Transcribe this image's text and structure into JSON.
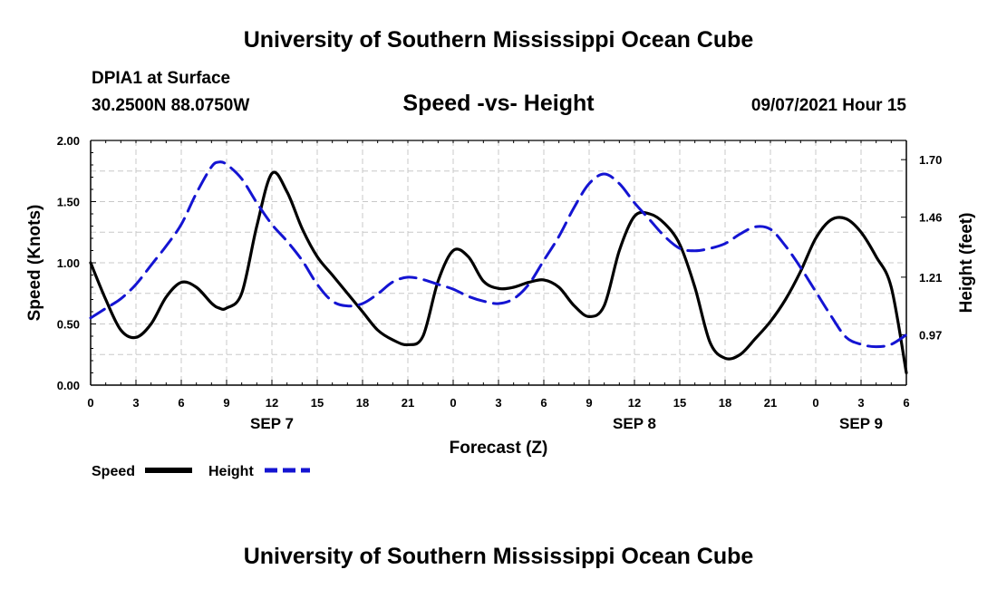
{
  "header": {
    "title_top": "University of Southern Mississippi Ocean Cube",
    "title_bottom": "University of Southern Mississippi Ocean Cube",
    "station": "DPIA1 at Surface",
    "coords": "30.2500N  88.0750W",
    "date_hour": "09/07/2021 Hour 15"
  },
  "colors": {
    "speed": "#000000",
    "height": "#1414d2",
    "grid": "#c8c8c8"
  },
  "chart_data": {
    "type": "line",
    "title": "Speed -vs- Height",
    "xlabel": "Forecast (Z)",
    "ylabel_left": "Speed (Knots)",
    "ylabel_right": "Height (feet)",
    "x_range_hours": [
      0,
      54
    ],
    "x_ticks": [
      {
        "hour": 0,
        "label": "0"
      },
      {
        "hour": 3,
        "label": "3"
      },
      {
        "hour": 6,
        "label": "6"
      },
      {
        "hour": 9,
        "label": "9"
      },
      {
        "hour": 12,
        "label": "12"
      },
      {
        "hour": 15,
        "label": "15"
      },
      {
        "hour": 18,
        "label": "18"
      },
      {
        "hour": 21,
        "label": "21"
      },
      {
        "hour": 24,
        "label": "0"
      },
      {
        "hour": 27,
        "label": "3"
      },
      {
        "hour": 30,
        "label": "6"
      },
      {
        "hour": 33,
        "label": "9"
      },
      {
        "hour": 36,
        "label": "12"
      },
      {
        "hour": 39,
        "label": "15"
      },
      {
        "hour": 42,
        "label": "18"
      },
      {
        "hour": 45,
        "label": "21"
      },
      {
        "hour": 48,
        "label": "0"
      },
      {
        "hour": 51,
        "label": "3"
      },
      {
        "hour": 54,
        "label": "6"
      }
    ],
    "date_labels": [
      {
        "hour": 12,
        "label": "SEP 7"
      },
      {
        "hour": 36,
        "label": "SEP 8"
      },
      {
        "hour": 51,
        "label": "SEP 9"
      }
    ],
    "y_left_range": [
      0,
      2
    ],
    "y_left_ticks": [
      "0.00",
      "0.50",
      "1.00",
      "1.50",
      "2.00"
    ],
    "y_right_range": [
      0.76,
      1.78
    ],
    "y_right_ticks": [
      "0.97",
      "1.21",
      "1.46",
      "1.70"
    ],
    "grid": true,
    "legend": {
      "position": "bottom-left",
      "entries": [
        "Speed",
        "Height"
      ]
    },
    "series": [
      {
        "name": "Speed",
        "axis": "left",
        "style": "solid",
        "x": [
          0,
          1,
          2,
          3,
          4,
          5,
          6,
          7,
          8,
          8.5,
          9,
          10,
          11,
          12,
          13,
          14,
          15,
          16,
          17,
          18,
          19,
          20,
          21,
          22,
          23,
          24,
          25,
          26,
          27,
          28,
          29,
          30,
          31,
          32,
          33,
          34,
          35,
          36,
          37,
          38,
          39,
          40,
          41,
          42,
          43,
          44,
          45,
          46,
          47,
          48,
          49,
          50,
          51,
          52,
          53,
          54
        ],
        "values": [
          1.0,
          0.7,
          0.45,
          0.39,
          0.5,
          0.72,
          0.84,
          0.8,
          0.67,
          0.63,
          0.63,
          0.75,
          1.3,
          1.73,
          1.58,
          1.28,
          1.05,
          0.9,
          0.75,
          0.6,
          0.45,
          0.37,
          0.33,
          0.4,
          0.85,
          1.1,
          1.05,
          0.85,
          0.79,
          0.8,
          0.84,
          0.86,
          0.8,
          0.65,
          0.56,
          0.65,
          1.1,
          1.38,
          1.4,
          1.32,
          1.15,
          0.8,
          0.35,
          0.22,
          0.25,
          0.38,
          0.52,
          0.7,
          0.93,
          1.2,
          1.35,
          1.36,
          1.25,
          1.05,
          0.8,
          0.1
        ]
      },
      {
        "name": "Height",
        "axis": "right",
        "style": "dashed",
        "x": [
          0,
          1,
          2,
          3,
          4,
          5,
          6,
          7,
          8,
          8.5,
          9,
          10,
          11,
          12,
          13,
          14,
          15,
          16,
          17,
          18,
          19,
          20,
          21,
          22,
          23,
          24,
          25,
          26,
          27,
          28,
          29,
          30,
          31,
          32,
          33,
          34,
          35,
          36,
          37,
          38,
          39,
          40,
          41,
          42,
          43,
          44,
          45,
          46,
          47,
          48,
          49,
          50,
          51,
          52,
          53,
          54
        ],
        "values": [
          1.04,
          1.08,
          1.12,
          1.18,
          1.26,
          1.34,
          1.43,
          1.56,
          1.67,
          1.69,
          1.68,
          1.62,
          1.52,
          1.43,
          1.36,
          1.28,
          1.18,
          1.11,
          1.09,
          1.1,
          1.14,
          1.19,
          1.21,
          1.2,
          1.18,
          1.16,
          1.13,
          1.11,
          1.1,
          1.12,
          1.18,
          1.28,
          1.38,
          1.5,
          1.6,
          1.64,
          1.6,
          1.52,
          1.45,
          1.38,
          1.33,
          1.32,
          1.33,
          1.35,
          1.39,
          1.42,
          1.41,
          1.34,
          1.25,
          1.15,
          1.05,
          0.96,
          0.93,
          0.92,
          0.93,
          0.97
        ]
      }
    ]
  }
}
